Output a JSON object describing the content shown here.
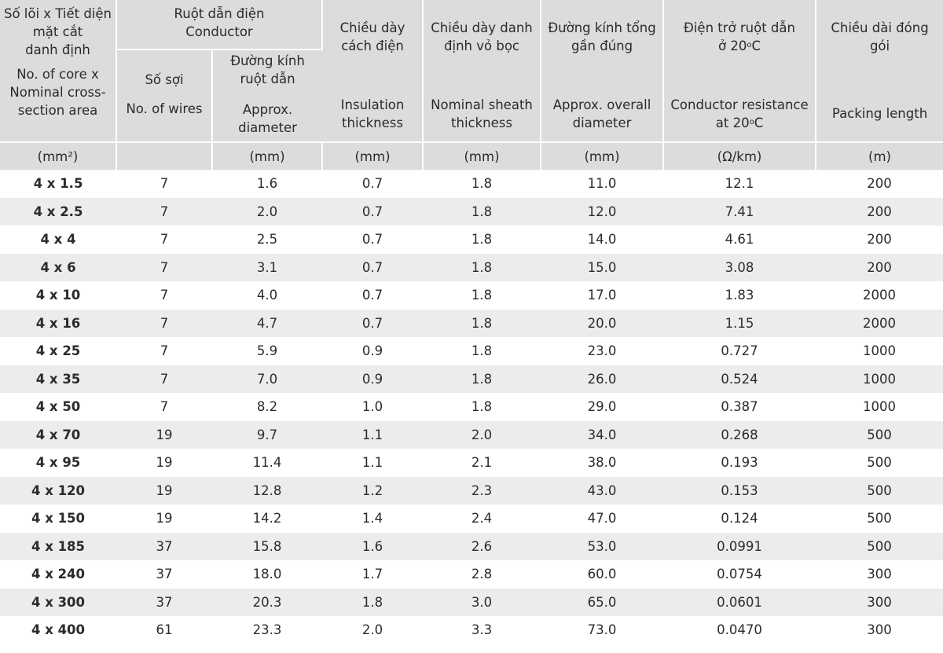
{
  "headers": {
    "size": {
      "vi_lines": [
        "Số lõi x Tiết diện",
        "mặt cắt",
        "danh định"
      ],
      "en_lines": [
        "No. of core x",
        "Nominal cross-",
        "section area"
      ],
      "unit": "(mm²)"
    },
    "conductor": {
      "vi": "Ruột dẫn điện",
      "en": "Conductor"
    },
    "wires": {
      "vi": "Số sợi",
      "en": "No. of wires",
      "unit": ""
    },
    "diameter": {
      "vi_lines": [
        "Đường kính",
        "ruột dẫn"
      ],
      "en_lines": [
        "Approx.",
        "diameter"
      ],
      "unit": "(mm)"
    },
    "insulation": {
      "vi_lines": [
        "Chiều dày",
        "cách điện"
      ],
      "en_lines": [
        "Insulation",
        "thickness"
      ],
      "unit": "(mm)"
    },
    "sheath": {
      "vi_lines": [
        "Chiều dày danh",
        "định vỏ bọc"
      ],
      "en_lines": [
        "Nominal sheath",
        "thickness"
      ],
      "unit": "(mm)"
    },
    "overall": {
      "vi_lines": [
        "Đường kính tổng",
        "gần đúng"
      ],
      "en_lines": [
        "Approx. overall",
        "diameter"
      ],
      "unit": "(mm)"
    },
    "resistance": {
      "vi_line1": "Điện trở ruột dẫn",
      "vi_line2_prefix": "ở 20",
      "en_line1": "Conductor resistance",
      "en_line2_prefix": "at 20",
      "degree_mark": "o",
      "degree_unit": "C",
      "unit": "(Ω/km)"
    },
    "packing": {
      "vi": "Chiều dài đóng gói",
      "en": "Packing length",
      "unit": "(m)"
    }
  },
  "rows": [
    [
      "4 x 1.5",
      "7",
      "1.6",
      "0.7",
      "1.8",
      "11.0",
      "12.1",
      "200"
    ],
    [
      "4 x 2.5",
      "7",
      "2.0",
      "0.7",
      "1.8",
      "12.0",
      "7.41",
      "200"
    ],
    [
      "4 x 4",
      "7",
      "2.5",
      "0.7",
      "1.8",
      "14.0",
      "4.61",
      "200"
    ],
    [
      "4 x 6",
      "7",
      "3.1",
      "0.7",
      "1.8",
      "15.0",
      "3.08",
      "200"
    ],
    [
      "4 x 10",
      "7",
      "4.0",
      "0.7",
      "1.8",
      "17.0",
      "1.83",
      "2000"
    ],
    [
      "4 x 16",
      "7",
      "4.7",
      "0.7",
      "1.8",
      "20.0",
      "1.15",
      "2000"
    ],
    [
      "4 x 25",
      "7",
      "5.9",
      "0.9",
      "1.8",
      "23.0",
      "0.727",
      "1000"
    ],
    [
      "4 x 35",
      "7",
      "7.0",
      "0.9",
      "1.8",
      "26.0",
      "0.524",
      "1000"
    ],
    [
      "4 x 50",
      "7",
      "8.2",
      "1.0",
      "1.8",
      "29.0",
      "0.387",
      "1000"
    ],
    [
      "4 x 70",
      "19",
      "9.7",
      "1.1",
      "2.0",
      "34.0",
      "0.268",
      "500"
    ],
    [
      "4 x 95",
      "19",
      "11.4",
      "1.1",
      "2.1",
      "38.0",
      "0.193",
      "500"
    ],
    [
      "4 x 120",
      "19",
      "12.8",
      "1.2",
      "2.3",
      "43.0",
      "0.153",
      "500"
    ],
    [
      "4 x 150",
      "19",
      "14.2",
      "1.4",
      "2.4",
      "47.0",
      "0.124",
      "500"
    ],
    [
      "4 x 185",
      "37",
      "15.8",
      "1.6",
      "2.6",
      "53.0",
      "0.0991",
      "500"
    ],
    [
      "4 x 240",
      "37",
      "18.0",
      "1.7",
      "2.8",
      "60.0",
      "0.0754",
      "300"
    ],
    [
      "4 x 300",
      "37",
      "20.3",
      "1.8",
      "3.0",
      "65.0",
      "0.0601",
      "300"
    ],
    [
      "4 x 400",
      "61",
      "23.3",
      "2.0",
      "3.3",
      "73.0",
      "0.0470",
      "300"
    ]
  ]
}
